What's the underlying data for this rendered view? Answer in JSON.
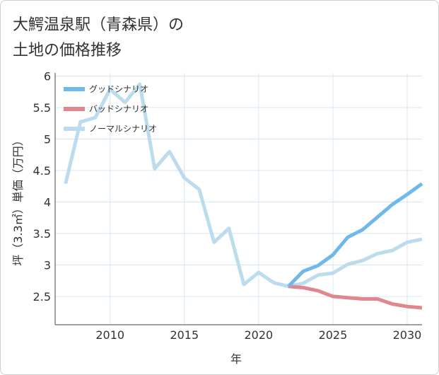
{
  "title": {
    "line1": "大鰐温泉駅（青森県）の",
    "line2": "土地の価格推移"
  },
  "chart_data": {
    "type": "line",
    "xlabel": "年",
    "ylabel": "坪（3.3㎡）単価（万円）",
    "xlim": [
      2006.3,
      2031
    ],
    "ylim": [
      2.05,
      6.05
    ],
    "x_ticks": [
      2010,
      2015,
      2020,
      2025,
      2030
    ],
    "y_ticks": [
      2.5,
      3,
      3.5,
      4,
      4.5,
      5,
      5.5,
      6
    ],
    "x_tick_labels": [
      "2010",
      "2015",
      "2020",
      "2025",
      "2030"
    ],
    "y_tick_labels": [
      "2.5",
      "3",
      "3.5",
      "4",
      "4.5",
      "5",
      "5.5",
      "6"
    ],
    "grid": true,
    "legend_position": "top-left",
    "series": [
      {
        "name": "グッドシナリオ",
        "color": "#6fb9ea",
        "x": [
          2022,
          2023,
          2024,
          2025,
          2026,
          2027,
          2028,
          2029,
          2030,
          2031
        ],
        "y": [
          2.66,
          2.9,
          2.99,
          3.16,
          3.44,
          3.56,
          3.76,
          3.96,
          4.12,
          4.29
        ]
      },
      {
        "name": "バッドシナリオ",
        "color": "#e0868f",
        "x": [
          2022,
          2023,
          2024,
          2025,
          2026,
          2027,
          2028,
          2029,
          2030,
          2031
        ],
        "y": [
          2.66,
          2.64,
          2.59,
          2.5,
          2.48,
          2.46,
          2.46,
          2.38,
          2.34,
          2.32
        ]
      },
      {
        "name": "ノーマルシナリオ",
        "color": "#bcdcee",
        "x": [
          2007,
          2008,
          2009,
          2010,
          2011,
          2012,
          2013,
          2014,
          2015,
          2016,
          2017,
          2018,
          2019,
          2020,
          2021,
          2022,
          2023,
          2024,
          2025,
          2026,
          2027,
          2028,
          2029,
          2030,
          2031
        ],
        "y": [
          4.29,
          5.27,
          5.34,
          5.79,
          5.58,
          5.87,
          4.53,
          4.8,
          4.38,
          4.2,
          3.36,
          3.58,
          2.69,
          2.88,
          2.72,
          2.66,
          2.71,
          2.84,
          2.87,
          3.01,
          3.07,
          3.18,
          3.23,
          3.36,
          3.41
        ]
      }
    ]
  }
}
